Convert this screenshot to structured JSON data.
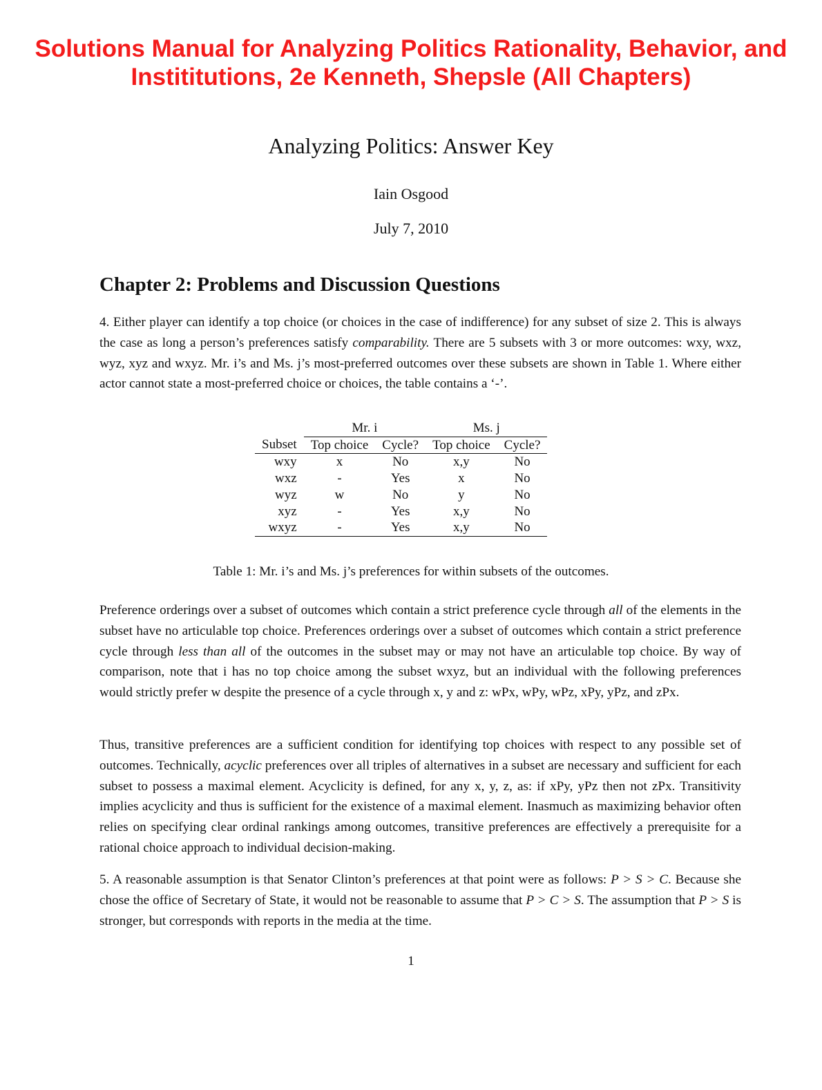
{
  "banner": {
    "line1": "Solutions Manual for Analyzing Politics Rationality, Behavior, and",
    "line2": "Instititutions, 2e Kenneth, Shepsle (All Chapters)",
    "color": "#f41c1c"
  },
  "title": "Analyzing Politics: Answer Key",
  "author": "Iain Osgood",
  "date": "July 7, 2010",
  "chapter": "Chapter 2:  Problems and Discussion Questions",
  "p1": [
    {
      "t": "4. Either player can identify a top choice (or choices in the case of indifference) for any subset of size 2. This is always the case as long a person’s preferences satisfy "
    },
    {
      "t": "comparability.",
      "i": true
    },
    {
      "t": " There are 5 subsets with 3 or more outcomes: wxy, wxz, wyz, xyz and wxyz. Mr. i’s and Ms. j’s most-preferred outcomes over these subsets are shown in Table 1. Where either actor cannot state a most-preferred choice or choices, the table contains a ‘-’."
    }
  ],
  "table": {
    "groups": [
      "Mr. i",
      "Ms. j"
    ],
    "headers": [
      "Subset",
      "Top choice",
      "Cycle?",
      "Top choice",
      "Cycle?"
    ],
    "rows": [
      [
        "wxy",
        "x",
        "No",
        "x,y",
        "No"
      ],
      [
        "wxz",
        "-",
        "Yes",
        "x",
        "No"
      ],
      [
        "wyz",
        "w",
        "No",
        "y",
        "No"
      ],
      [
        "xyz",
        "-",
        "Yes",
        "x,y",
        "No"
      ],
      [
        "wxyz",
        "-",
        "Yes",
        "x,y",
        "No"
      ]
    ],
    "caption": "Table 1: Mr. i’s and Ms. j’s preferences for within subsets of the outcomes."
  },
  "p2": [
    {
      "t": "Preference orderings over a subset of outcomes which contain a strict preference cycle through "
    },
    {
      "t": "all",
      "i": true
    },
    {
      "t": " of the elements in the subset have no articulable top choice. Preferences orderings over a subset of outcomes which contain a strict preference cycle through "
    },
    {
      "t": "less than all",
      "i": true
    },
    {
      "t": " of the outcomes in the subset may or may not have an articulable top choice. By way of comparison, note that i has no top choice among the subset wxyz, but an individual with the following preferences would strictly prefer w despite the presence of a cycle through x, y and z: wPx, wPy, wPz, xPy, yPz, and zPx."
    }
  ],
  "p3": [
    {
      "t": "Thus, transitive preferences are a sufficient condition for identifying top choices with respect to any possible set of outcomes. Technically, "
    },
    {
      "t": "acyclic",
      "i": true
    },
    {
      "t": " preferences over all triples of alternatives in a subset are necessary and sufficient for each subset to possess a maximal element. Acyclicity is defined, for any x, y, z, as: if xPy, yPz then not zPx. Transitivity implies acyclicity and thus is sufficient for the existence of a maximal element. Inasmuch as maximizing behavior often relies on specifying clear ordinal rankings among outcomes, transitive preferences are effectively a prerequisite for a rational choice approach to individual decision-making."
    }
  ],
  "p4": [
    {
      "t": "5. A reasonable assumption is that Senator Clinton’s preferences at that point were as follows: "
    },
    {
      "t": "P > S > C",
      "i": true
    },
    {
      "t": ". Because she chose the office of Secretary of State, it would not be reasonable to assume that "
    },
    {
      "t": "P > C > S",
      "i": true
    },
    {
      "t": ". The assumption that "
    },
    {
      "t": "P > S",
      "i": true
    },
    {
      "t": " is stronger, but corresponds with reports in the media at the time."
    }
  ],
  "page_number": "1"
}
